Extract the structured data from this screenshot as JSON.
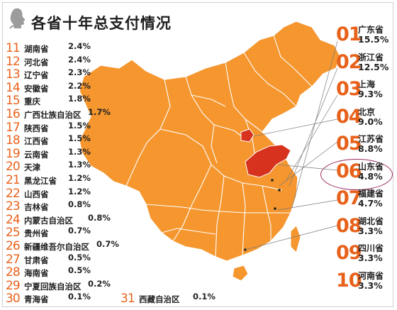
{
  "title": "各省十年总支付情况",
  "colors": {
    "accent": "#e8611a",
    "map_fill": "#f5962e",
    "map_border": "#ffffff",
    "highlight_fill": "#d6321e",
    "ring": "#9a2a5e"
  },
  "icons": {
    "logo": "silhouette-logo-icon"
  },
  "top_ten": [
    {
      "rank": "01",
      "name": "广东省",
      "pct": "15.5%"
    },
    {
      "rank": "02",
      "name": "浙江省",
      "pct": "12.5%"
    },
    {
      "rank": "03",
      "name": "上海",
      "pct": "9.3%"
    },
    {
      "rank": "04",
      "name": "北京",
      "pct": "9.0%"
    },
    {
      "rank": "05",
      "name": "江苏省",
      "pct": "8.8%"
    },
    {
      "rank": "06",
      "name": "山东省",
      "pct": "4.8%"
    },
    {
      "rank": "07",
      "name": "福建省",
      "pct": "4.7%"
    },
    {
      "rank": "08",
      "name": "湖北省",
      "pct": "3.3%"
    },
    {
      "rank": "09",
      "name": "四川省",
      "pct": "3.3%"
    },
    {
      "rank": "10",
      "name": "河南省",
      "pct": "3.3%"
    }
  ],
  "others": [
    {
      "rank": "11",
      "name": "湖南省",
      "pct": "2.4%"
    },
    {
      "rank": "12",
      "name": "河北省",
      "pct": "2.4%"
    },
    {
      "rank": "13",
      "name": "辽宁省",
      "pct": "2.3%"
    },
    {
      "rank": "14",
      "name": "安徽省",
      "pct": "2.2%"
    },
    {
      "rank": "15",
      "name": "重庆",
      "pct": "1.8%"
    },
    {
      "rank": "16",
      "name": "广西壮族自治区",
      "pct": "1.7%"
    },
    {
      "rank": "17",
      "name": "陕西省",
      "pct": "1.5%"
    },
    {
      "rank": "18",
      "name": "江西省",
      "pct": "1.5%"
    },
    {
      "rank": "19",
      "name": "云南省",
      "pct": "1.3%"
    },
    {
      "rank": "20",
      "name": "天津",
      "pct": "1.3%"
    },
    {
      "rank": "21",
      "name": "黑龙江省",
      "pct": "1.2%"
    },
    {
      "rank": "22",
      "name": "山西省",
      "pct": "1.2%"
    },
    {
      "rank": "23",
      "name": "吉林省",
      "pct": "0.8%"
    },
    {
      "rank": "24",
      "name": "内蒙古自治区",
      "pct": "0.8%"
    },
    {
      "rank": "25",
      "name": "贵州省",
      "pct": "0.7%"
    },
    {
      "rank": "26",
      "name": "新疆维吾尔自治区",
      "pct": "0.7%"
    },
    {
      "rank": "27",
      "name": "甘肃省",
      "pct": "0.5%"
    },
    {
      "rank": "28",
      "name": "海南省",
      "pct": "0.5%"
    },
    {
      "rank": "29",
      "name": "宁夏回族自治区",
      "pct": "0.2%"
    },
    {
      "rank": "30",
      "name": "青海省",
      "pct": "0.1%"
    },
    {
      "rank": "31",
      "name": "西藏自治区",
      "pct": "0.1%"
    }
  ]
}
